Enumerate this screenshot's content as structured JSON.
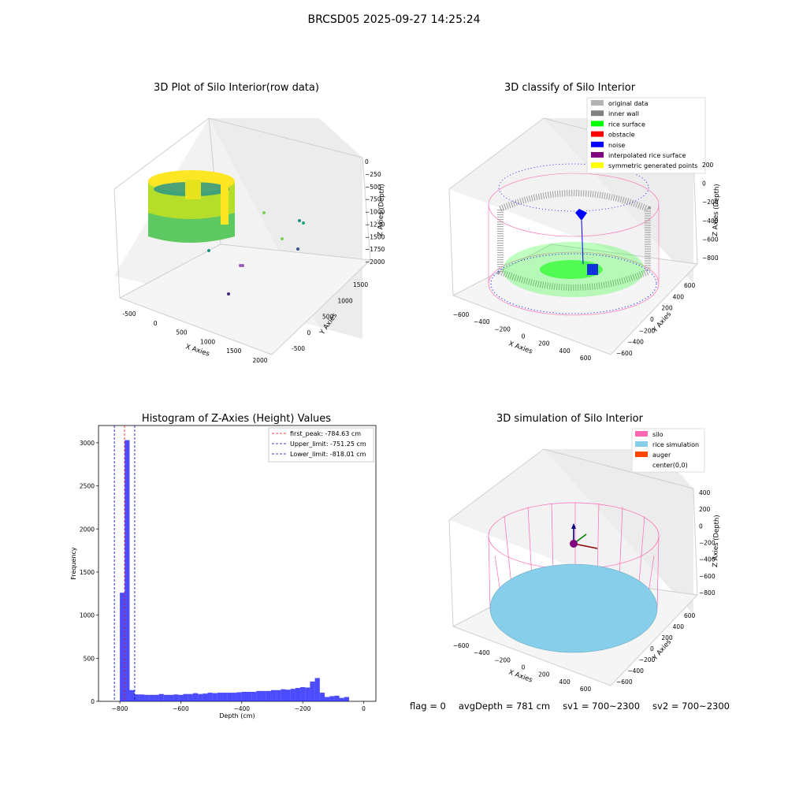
{
  "figure": {
    "title": "BRCSD05 2025-09-27 14:25:24"
  },
  "panels": {
    "raw": {
      "title": "3D Plot of Silo Interior(row data)",
      "xlabel": "X Axies",
      "ylabel": "Y Axies",
      "zlabel": "Z Axies (Depth)",
      "x_ticks": [
        "-500",
        "0",
        "500",
        "1000",
        "1500",
        "2000"
      ],
      "y_ticks": [
        "-500",
        "0",
        "500",
        "1000",
        "1500"
      ],
      "z_ticks": [
        "0",
        "−250",
        "−500",
        "−750",
        "−1000",
        "−1250",
        "−1500",
        "−1750",
        "−2000"
      ]
    },
    "classify": {
      "title": "3D classify of Silo Interior",
      "xlabel": "X Axies",
      "ylabel": "Y Axies",
      "zlabel": "Z Axies (Depth)",
      "x_ticks": [
        "−600",
        "−400",
        "−200",
        "0",
        "200",
        "400",
        "600"
      ],
      "y_ticks": [
        "−600",
        "−400",
        "−200",
        "0",
        "200",
        "400",
        "600"
      ],
      "z_ticks": [
        "200",
        "0",
        "−200",
        "−400",
        "−600",
        "−800"
      ],
      "legend": [
        {
          "label": "original data",
          "color": "#b3b3b3"
        },
        {
          "label": "inner wall",
          "color": "#808080"
        },
        {
          "label": "rice surface",
          "color": "#00ff00"
        },
        {
          "label": "obstacle",
          "color": "#ff0000"
        },
        {
          "label": "noise",
          "color": "#0000ff"
        },
        {
          "label": "interpolated rice surface",
          "color": "#800080"
        },
        {
          "label": "symmetric generated points",
          "color": "#ffff00"
        }
      ]
    },
    "simulation": {
      "title": "3D simulation of Silo Interior",
      "xlabel": "X Axies",
      "ylabel": "Y Axies",
      "zlabel": "Z Axies (Depth)",
      "x_ticks": [
        "−600",
        "−400",
        "−200",
        "0",
        "200",
        "400",
        "600"
      ],
      "y_ticks": [
        "−600",
        "−400",
        "−200",
        "0",
        "200",
        "400",
        "600"
      ],
      "z_ticks": [
        "400",
        "200",
        "0",
        "−200",
        "−400",
        "−600",
        "−800"
      ],
      "legend": [
        {
          "label": "silo",
          "color": "#ff69b4"
        },
        {
          "label": "rice simulation",
          "color": "#87ceeb"
        },
        {
          "label": "auger",
          "color": "#ff4500"
        },
        {
          "label": "center(0,0)",
          "color": "#ffffff"
        }
      ]
    }
  },
  "chart_data": [
    {
      "type": "scatter",
      "title": "3D Plot of Silo Interior(row data)",
      "xlabel": "X Axies",
      "ylabel": "Y Axies",
      "zlabel": "Z Axies (Depth)",
      "xlim": [
        -650,
        2100
      ],
      "ylim": [
        -650,
        1700
      ],
      "zlim": [
        -2050,
        100
      ]
    },
    {
      "type": "scatter",
      "title": "3D classify of Silo Interior",
      "xlabel": "X Axies",
      "ylabel": "Y Axies",
      "zlabel": "Z Axies (Depth)",
      "xlim": [
        -700,
        700
      ],
      "ylim": [
        -700,
        700
      ],
      "zlim": [
        -900,
        300
      ]
    },
    {
      "type": "bar",
      "title": "Histogram of Z-Axies (Height) Values",
      "xlabel": "Depth (cm)",
      "ylabel": "Frequency",
      "xlim": [
        -870,
        40
      ],
      "ylim": [
        0,
        3200
      ],
      "x_ticks": [
        -800,
        -600,
        -400,
        -200,
        0
      ],
      "x_tick_labels": [
        "−800",
        "−600",
        "−400",
        "−200",
        "0"
      ],
      "y_ticks": [
        0,
        500,
        1000,
        1500,
        2000,
        2500,
        3000
      ],
      "bin_width": 16,
      "bin_start": -800,
      "values": [
        1260,
        3030,
        130,
        80,
        80,
        75,
        75,
        75,
        85,
        75,
        75,
        80,
        75,
        85,
        85,
        95,
        85,
        90,
        100,
        95,
        100,
        100,
        100,
        100,
        105,
        110,
        110,
        110,
        120,
        120,
        120,
        130,
        130,
        140,
        135,
        145,
        155,
        165,
        160,
        230,
        270,
        100,
        50,
        60,
        65,
        40,
        50
      ],
      "bar_color": "#0000ff",
      "lines": [
        {
          "label": "first_peak: -784.63 cm",
          "x": -784.63,
          "color": "#ff0000"
        },
        {
          "label": "Upper_limit: -751.25 cm",
          "x": -751.25,
          "color": "#0000aa"
        },
        {
          "label": "Lower_limit: -818.01 cm",
          "x": -818.01,
          "color": "#0000aa"
        }
      ],
      "legend_position": "top-right"
    },
    {
      "type": "scatter",
      "title": "3D simulation of Silo Interior",
      "xlabel": "X Axies",
      "ylabel": "Y Axies",
      "zlabel": "Z Axies (Depth)",
      "xlim": [
        -700,
        700
      ],
      "ylim": [
        -700,
        700
      ],
      "zlim": [
        -900,
        500
      ]
    }
  ],
  "footer": {
    "flag": "flag = 0",
    "avg_depth": "avgDepth = 781 cm",
    "sv1": "sv1 = 700~2300",
    "sv2": "sv2 = 700~2300"
  }
}
